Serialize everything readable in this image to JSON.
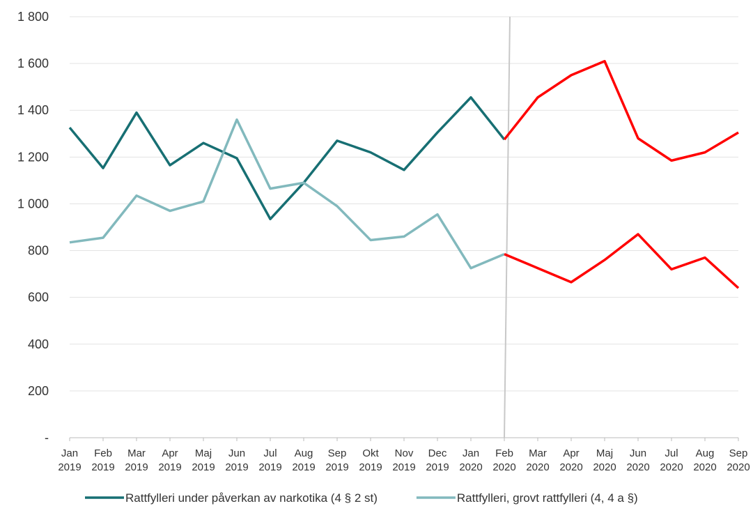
{
  "chart_data": {
    "type": "line",
    "categories": [
      "Jan 2019",
      "Feb 2019",
      "Mar 2019",
      "Apr 2019",
      "Maj 2019",
      "Jun 2019",
      "Jul 2019",
      "Aug 2019",
      "Sep 2019",
      "Okt 2019",
      "Nov 2019",
      "Dec 2019",
      "Jan 2020",
      "Feb 2020",
      "Mar 2020",
      "Apr 2020",
      "Maj 2020",
      "Jun 2020",
      "Jul 2020",
      "Aug 2020",
      "Sep 2020"
    ],
    "series": [
      {
        "name": "Rattfylleri under påverkan av narkotika (4 § 2 st)",
        "color": "#176f73",
        "values": [
          1326,
          1153,
          1390,
          1165,
          1260,
          1195,
          935,
          1090,
          1270,
          1220,
          1145,
          1305,
          1455,
          1275,
          1455,
          1550,
          1610,
          1280,
          1185,
          1220,
          1305
        ]
      },
      {
        "name": "Rattfylleri, grovt rattfylleri (4, 4 a §)",
        "color": "#82b9bd",
        "values": [
          835,
          855,
          1035,
          970,
          1010,
          1360,
          1065,
          1090,
          990,
          845,
          860,
          955,
          725,
          785,
          725,
          665,
          760,
          870,
          720,
          770,
          640
        ]
      }
    ],
    "highlight_from": "Feb 2020",
    "highlight_color": "#ff0000",
    "ylim": [
      0,
      1800
    ],
    "yticks": [
      {
        "value": 0,
        "label": "-"
      },
      200,
      400,
      600,
      800,
      {
        "value": 1000,
        "label": "1 000"
      },
      {
        "value": 1200,
        "label": "1 200"
      },
      {
        "value": 1400,
        "label": "1 400"
      },
      {
        "value": 1600,
        "label": "1 600"
      },
      {
        "value": 1800,
        "label": "1 800"
      }
    ],
    "grid": true,
    "legend": "bottom"
  }
}
